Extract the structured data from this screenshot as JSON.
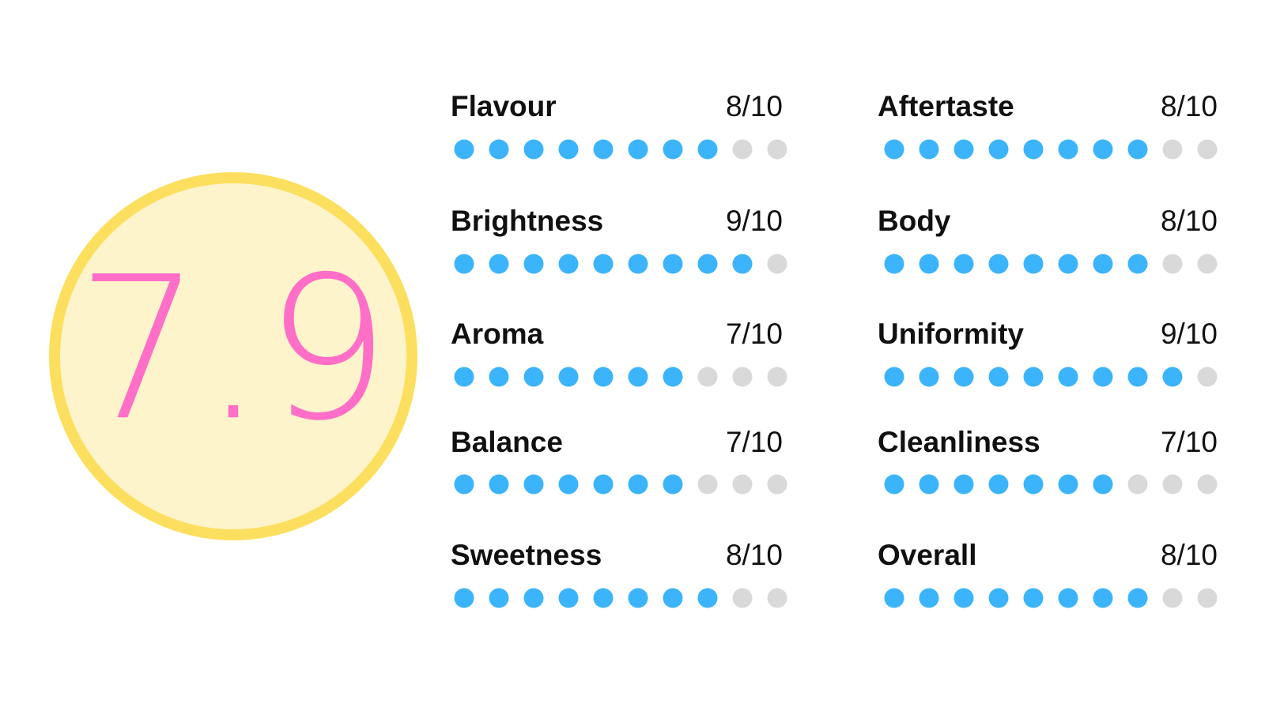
{
  "score": "7.9",
  "items": [
    {
      "label": "Flavour",
      "rating": "8/10",
      "value": 8,
      "max": 10
    },
    {
      "label": "Brightness",
      "rating": "9/10",
      "value": 9,
      "max": 10
    },
    {
      "label": "Aroma",
      "rating": "7/10",
      "value": 7,
      "max": 10
    },
    {
      "label": "Balance",
      "rating": "7/10",
      "value": 7,
      "max": 10
    },
    {
      "label": "Sweetness",
      "rating": "8/10",
      "value": 8,
      "max": 10
    },
    {
      "label": "Aftertaste",
      "rating": "8/10",
      "value": 8,
      "max": 10
    },
    {
      "label": "Body",
      "rating": "8/10",
      "value": 8,
      "max": 10
    },
    {
      "label": "Uniformity",
      "rating": "9/10",
      "value": 9,
      "max": 10
    },
    {
      "label": "Cleanliness",
      "rating": "7/10",
      "value": 7,
      "max": 10
    },
    {
      "label": "Overall",
      "rating": "8/10",
      "value": 8,
      "max": 10
    }
  ]
}
